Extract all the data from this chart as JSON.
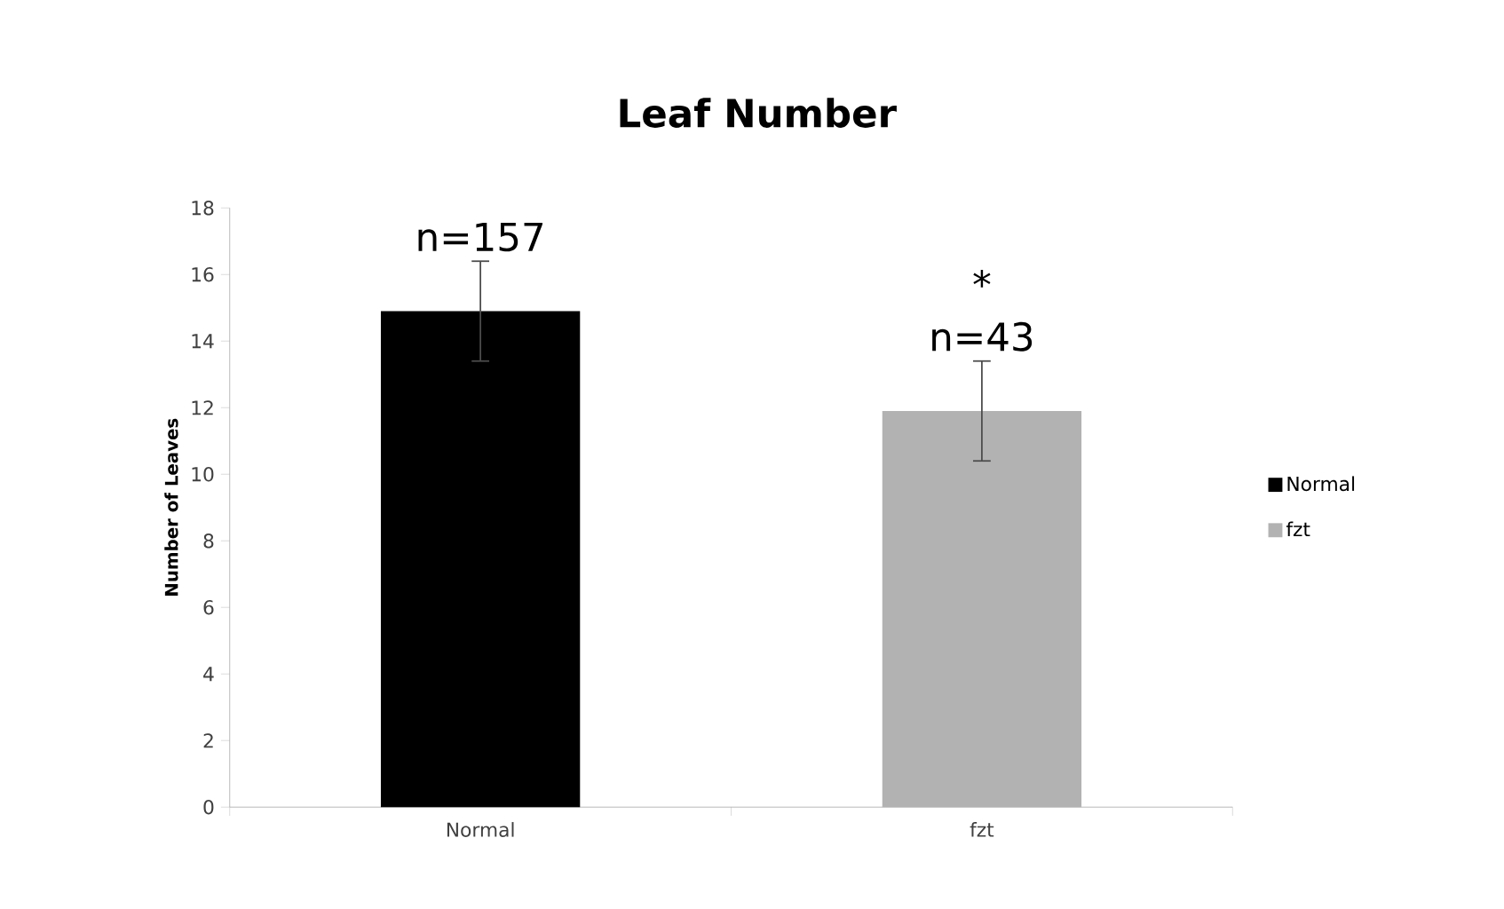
{
  "chart_data": {
    "type": "bar",
    "title": "Leaf Number",
    "ylabel": "Number of Leaves",
    "categories": [
      "Normal",
      "fzt"
    ],
    "series": [
      {
        "name": "Normal",
        "color": "#000000",
        "values": [
          14.9,
          null
        ],
        "errors": [
          1.5,
          null
        ]
      },
      {
        "name": "fzt",
        "color": "#b2b2b2",
        "values": [
          null,
          11.9
        ],
        "errors": [
          null,
          1.5
        ]
      }
    ],
    "ylim": [
      0,
      18
    ],
    "yticks": [
      0,
      2,
      4,
      6,
      8,
      10,
      12,
      14,
      16,
      18
    ],
    "legend": "right",
    "annotations": [
      "n=157",
      "*",
      "n=43"
    ]
  }
}
